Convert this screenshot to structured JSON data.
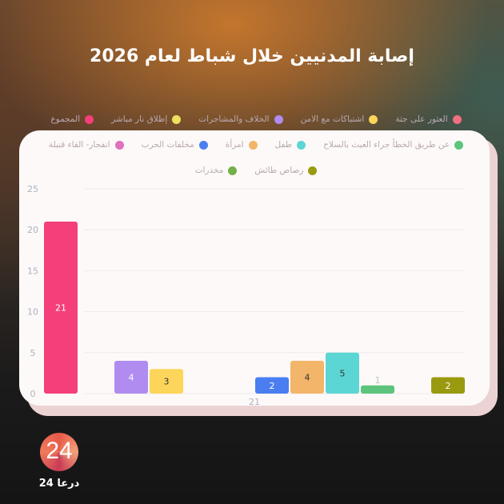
{
  "title": "إصابة المدنيين خلال شباط لعام 2026",
  "logo": {
    "number": "24",
    "brand": "درعا 24"
  },
  "chart_data": {
    "type": "bar",
    "title": "إصابة المدنيين خلال شباط لعام 2026",
    "categories": [
      "21"
    ],
    "ylim": [
      0,
      25
    ],
    "yticks": [
      0,
      5,
      10,
      15,
      20,
      25
    ],
    "grid": true,
    "legend_position": "top",
    "series": [
      {
        "name": "المجموع",
        "values": [
          21
        ],
        "color": "#f43f7a"
      },
      {
        "name": "إطلاق نار مباشر",
        "values": [
          0
        ],
        "color": "#f0e060"
      },
      {
        "name": "الخلاف والمشاجرات",
        "values": [
          4
        ],
        "color": "#b08cf0"
      },
      {
        "name": "اشتباكات مع الامن",
        "values": [
          3
        ],
        "color": "#fcd55a"
      },
      {
        "name": "العثور على جثة",
        "values": [
          0
        ],
        "color": "#f07080"
      },
      {
        "name": "انفجار- القاء قنبلة",
        "values": [
          0
        ],
        "color": "#e070c0"
      },
      {
        "name": "مخلفات الحرب",
        "values": [
          2
        ],
        "color": "#4a7ef0"
      },
      {
        "name": "امرأة",
        "values": [
          4
        ],
        "color": "#f2b56a"
      },
      {
        "name": "طفل",
        "values": [
          5
        ],
        "color": "#5cd6d4"
      },
      {
        "name": "عن طريق الخطأ جراء العبث بالسلاح",
        "values": [
          1
        ],
        "color": "#5cc47c"
      },
      {
        "name": "مخدرات",
        "values": [
          0
        ],
        "color": "#72b04a"
      },
      {
        "name": "رصاص طائش",
        "values": [
          2
        ],
        "color": "#9a9a10"
      }
    ],
    "legend_rows": [
      [
        "العثور على جثة",
        "اشتباكات مع الامن",
        "الخلاف والمشاجرات",
        "إطلاق نار مباشر",
        "المجموع"
      ],
      [
        "عن طريق الخطأ جراء العبث بالسلاح",
        "طفل",
        "امرأة",
        "مخلفات الحرب",
        "انفجار- القاء قنبلة"
      ],
      [
        "رصاص طائش",
        "مخدرات"
      ]
    ]
  }
}
